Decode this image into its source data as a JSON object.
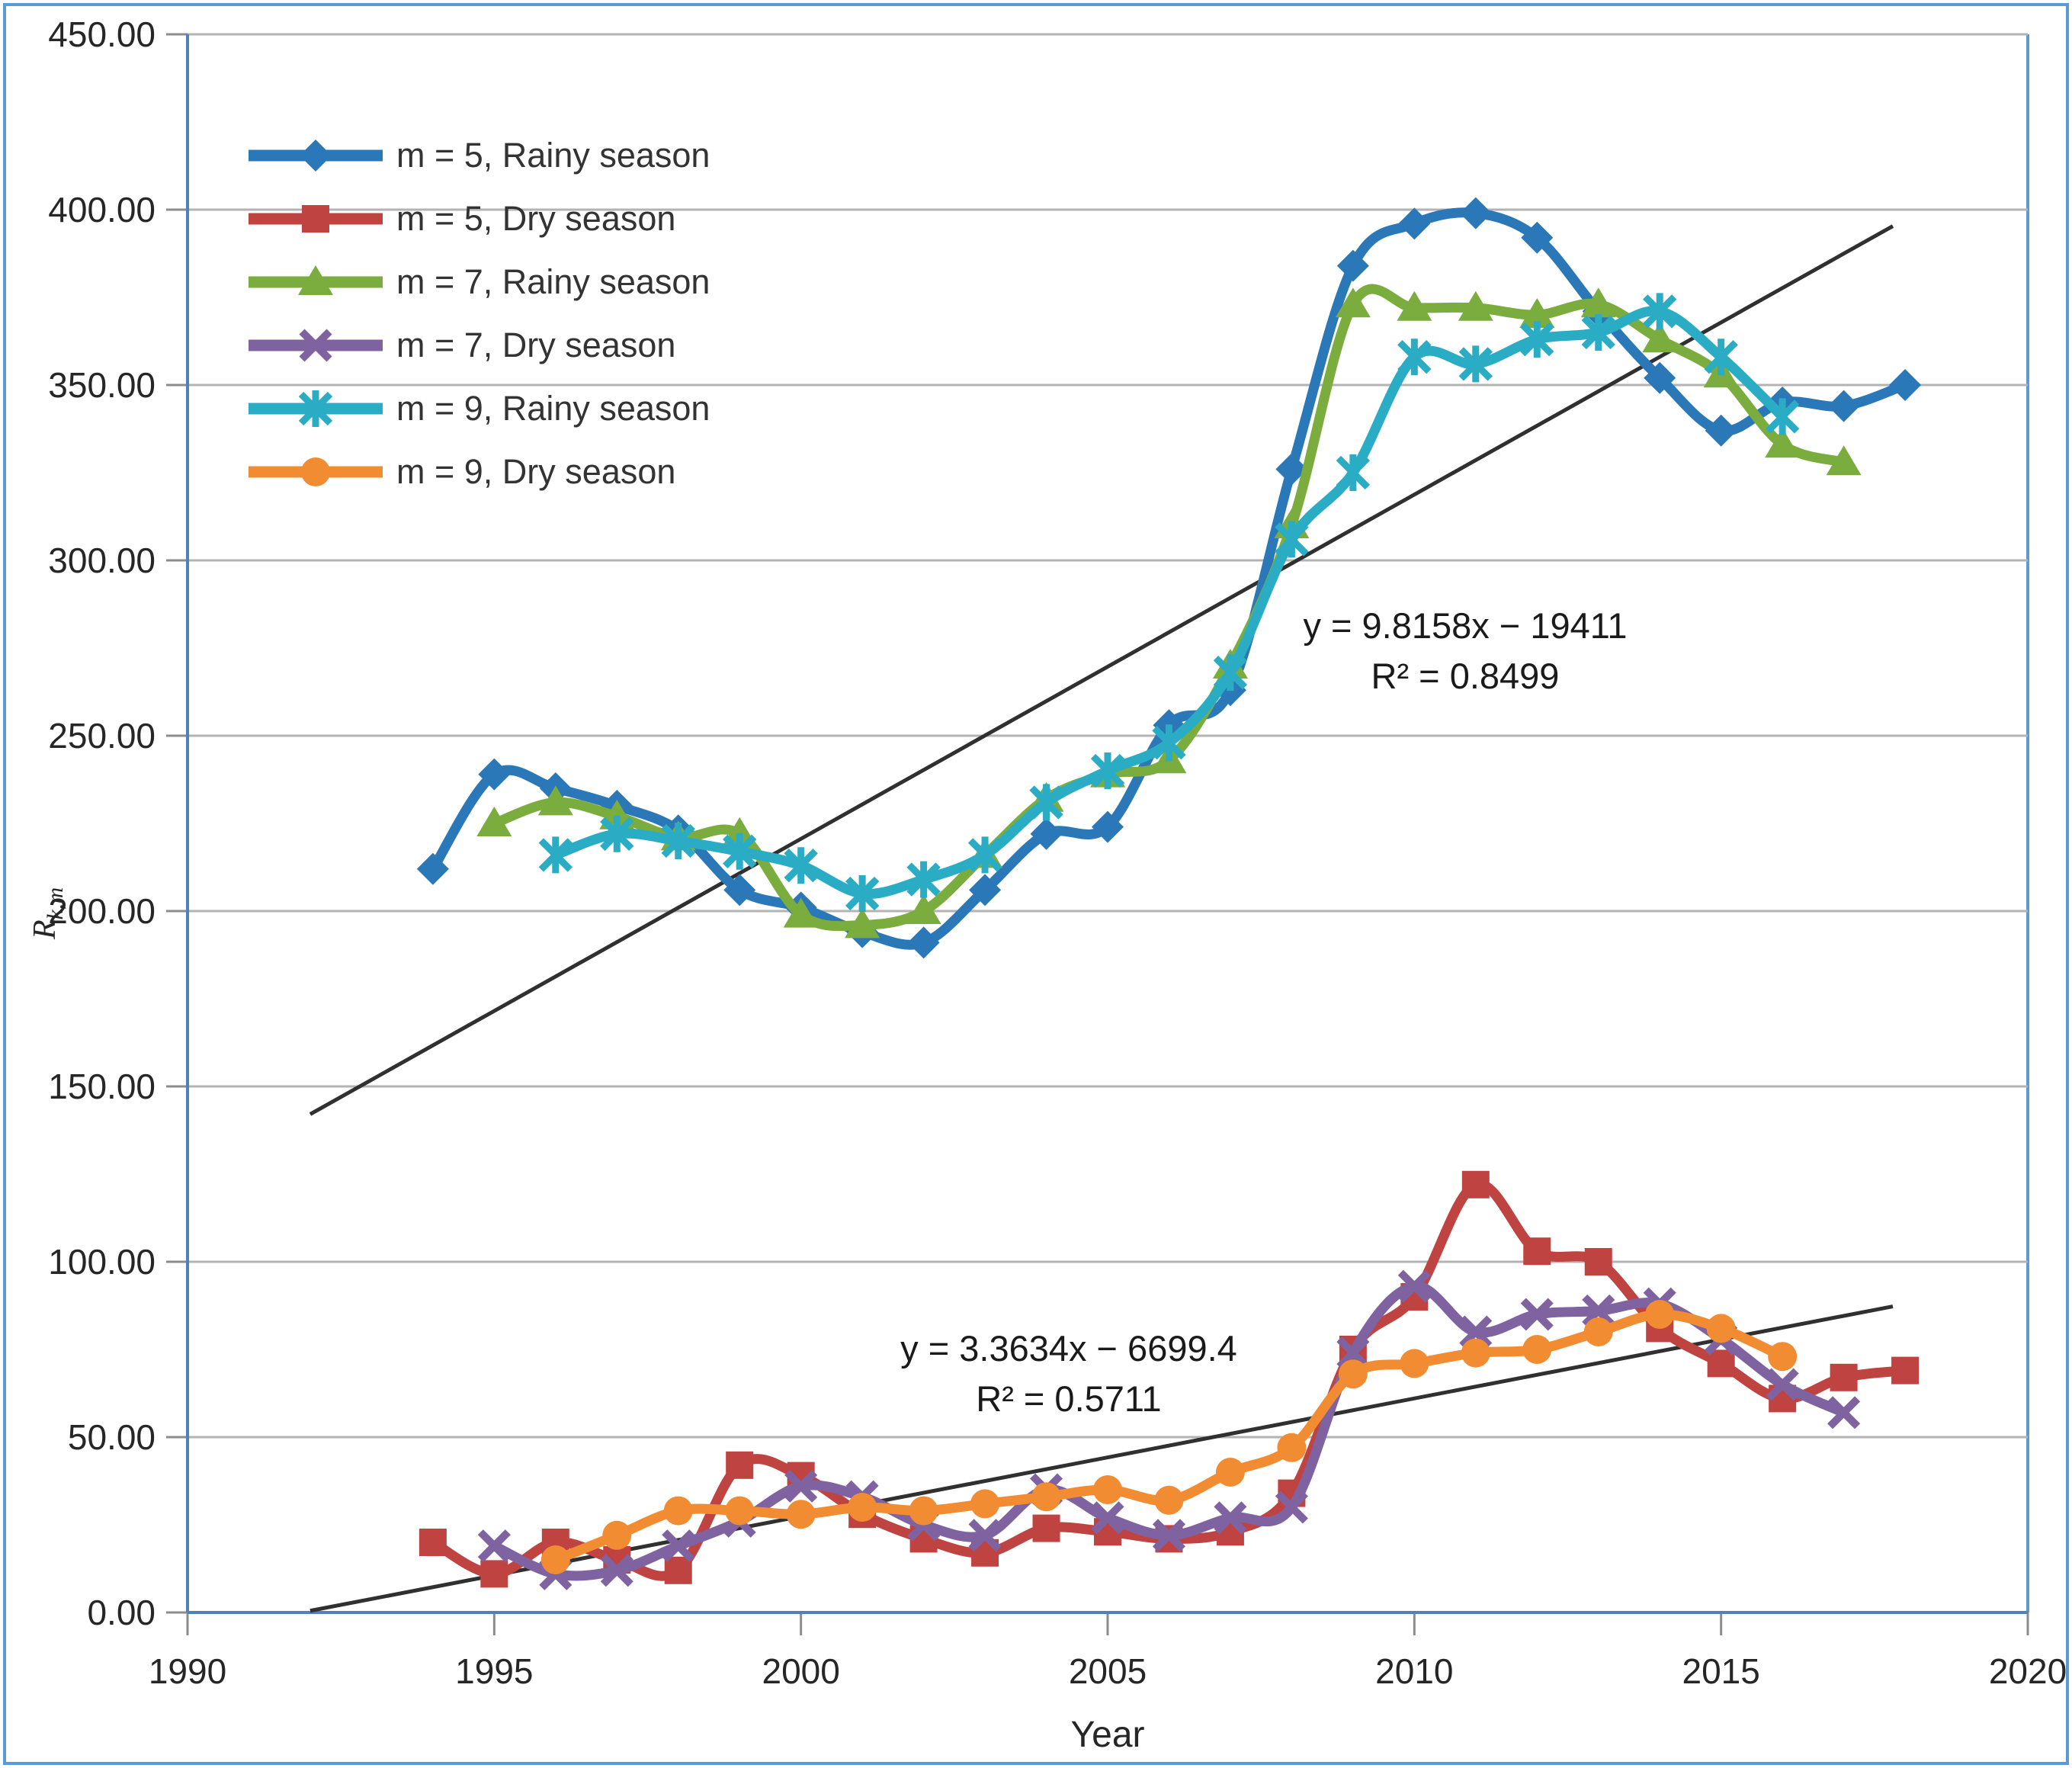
{
  "figure": {
    "background": "#ffffff",
    "outer_border_color": "#5B9BD5",
    "axis_color": "#4F81BD",
    "gridline_color": "#B3B3B3",
    "tick_color": "#8C8C8C",
    "text_color": "#262626",
    "trendline_color": "#303030"
  },
  "legend": {
    "items": [
      {
        "label": "m = 5, Rainy season",
        "series": 0
      },
      {
        "label": "m = 5, Dry season",
        "series": 1
      },
      {
        "label": "m = 7, Rainy season",
        "series": 2
      },
      {
        "label": "m = 7, Dry season",
        "series": 3
      },
      {
        "label": "m = 9, Rainy season",
        "series": 4
      },
      {
        "label": "m = 9, Dry season",
        "series": 5
      }
    ]
  },
  "chart_data": {
    "type": "line",
    "title": "",
    "xlabel": "Year",
    "ylabel_main": "R",
    "ylabel_sub": "k,m",
    "xlim": [
      1990,
      2020
    ],
    "ylim": [
      0,
      450
    ],
    "grid": true,
    "x_ticks": [
      "1990",
      "1995",
      "2000",
      "2005",
      "2010",
      "2015",
      "2020"
    ],
    "y_ticks": [
      "0.00",
      "50.00",
      "100.00",
      "150.00",
      "200.00",
      "250.00",
      "300.00",
      "350.00",
      "400.00",
      "450.00"
    ],
    "series": [
      {
        "name": "m = 5, Rainy season",
        "slug": "m5-rainy",
        "color": "#2B78B8",
        "marker": "diamond",
        "x": [
          1994,
          1995,
          1996,
          1997,
          1998,
          1999,
          2000,
          2001,
          2002,
          2003,
          2004,
          2005,
          2006,
          2007,
          2008,
          2009,
          2010,
          2011,
          2012,
          2013,
          2014,
          2015,
          2016,
          2017,
          2018
        ],
        "values": [
          212,
          239,
          235,
          230,
          223,
          206,
          201,
          194,
          191,
          206,
          222,
          224,
          253,
          263,
          326,
          384,
          396,
          399,
          392,
          371,
          352,
          337,
          345,
          344,
          350
        ]
      },
      {
        "name": "m = 5, Dry season",
        "slug": "m5-dry",
        "color": "#BF4340",
        "marker": "square",
        "x": [
          1994,
          1995,
          1996,
          1997,
          1998,
          1999,
          2000,
          2001,
          2002,
          2003,
          2004,
          2005,
          2006,
          2007,
          2008,
          2009,
          2010,
          2011,
          2012,
          2013,
          2014,
          2015,
          2016,
          2017,
          2018
        ],
        "values": [
          20,
          11,
          20,
          15,
          12,
          42,
          39,
          28,
          21,
          17,
          24,
          23,
          21,
          23,
          34,
          75,
          90,
          122,
          103,
          100,
          81,
          71,
          61,
          67,
          69
        ]
      },
      {
        "name": "m = 7, Rainy season",
        "slug": "m7-rainy",
        "color": "#7BAC3E",
        "marker": "triangle",
        "x": [
          1995,
          1996,
          1997,
          1998,
          1999,
          2000,
          2001,
          2002,
          2003,
          2004,
          2005,
          2006,
          2007,
          2008,
          2009,
          2010,
          2011,
          2012,
          2013,
          2014,
          2015,
          2016,
          2017
        ],
        "values": [
          225,
          231,
          227,
          221,
          222,
          199,
          196,
          200,
          216,
          232,
          239,
          243,
          270,
          310,
          373,
          372,
          372,
          370,
          373,
          363,
          353,
          333,
          328
        ]
      },
      {
        "name": "m = 7, Dry season",
        "slug": "m7-dry",
        "color": "#7F63A1",
        "marker": "xmark",
        "x": [
          1995,
          1996,
          1997,
          1998,
          1999,
          2000,
          2001,
          2002,
          2003,
          2004,
          2005,
          2006,
          2007,
          2008,
          2009,
          2010,
          2011,
          2012,
          2013,
          2014,
          2015,
          2016,
          2017
        ],
        "values": [
          19,
          11,
          12,
          19,
          26,
          36,
          33,
          25,
          22,
          35,
          27,
          22,
          27,
          30,
          74,
          93,
          80,
          85,
          86,
          88,
          78,
          65,
          57
        ]
      },
      {
        "name": "m = 9, Rainy season",
        "slug": "m9-rainy",
        "color": "#2AACC4",
        "marker": "asterisk",
        "x": [
          1996,
          1997,
          1998,
          1999,
          2000,
          2001,
          2002,
          2003,
          2004,
          2005,
          2006,
          2007,
          2008,
          2009,
          2010,
          2011,
          2012,
          2013,
          2014,
          2015,
          2016
        ],
        "values": [
          216,
          222,
          220,
          217,
          213,
          205,
          209,
          216,
          231,
          240,
          248,
          268,
          306,
          325,
          358,
          356,
          363,
          365,
          371,
          358,
          341
        ]
      },
      {
        "name": "m = 9, Dry season",
        "slug": "m9-dry",
        "color": "#F28C33",
        "marker": "circle",
        "x": [
          1996,
          1997,
          1998,
          1999,
          2000,
          2001,
          2002,
          2003,
          2004,
          2005,
          2006,
          2007,
          2008,
          2009,
          2010,
          2011,
          2012,
          2013,
          2014,
          2015,
          2016
        ],
        "values": [
          15,
          22,
          29,
          29,
          28,
          30,
          29,
          31,
          33,
          35,
          32,
          40,
          47,
          68,
          71,
          74,
          75,
          80,
          85,
          81,
          73
        ]
      }
    ],
    "trendlines": [
      {
        "equation": "y = 9.8158x − 19411",
        "r2": "R² = 0.8499",
        "slope": 9.8158,
        "intercept": -19411,
        "x_start": 1992,
        "x_end": 2017.8
      },
      {
        "equation": "y = 3.3634x − 6699.4",
        "r2": "R² = 0.5711",
        "slope": 3.3634,
        "intercept": -6699.4,
        "x_start": 1992,
        "x_end": 2017.8
      }
    ]
  }
}
